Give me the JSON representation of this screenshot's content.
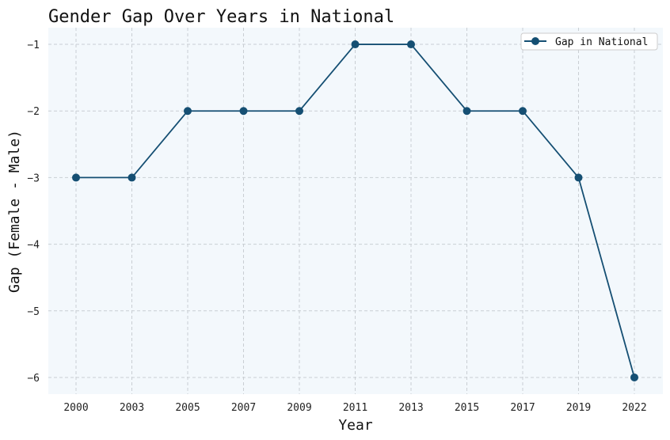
{
  "chart_data": {
    "type": "line",
    "title": "Gender Gap Over Years in National",
    "xlabel": "Year",
    "ylabel": "Gap (Female - Male)",
    "categories": [
      "2000",
      "2003",
      "2005",
      "2007",
      "2009",
      "2011",
      "2013",
      "2015",
      "2017",
      "2019",
      "2022"
    ],
    "series": [
      {
        "name": "Gap in National",
        "values": [
          -3,
          -3,
          -2,
          -2,
          -2,
          -1,
          -1,
          -2,
          -2,
          -3,
          -6
        ]
      }
    ],
    "ylim": [
      -6.25,
      -0.75
    ],
    "yticks": [
      -1,
      -2,
      -3,
      -4,
      -5,
      -6
    ],
    "ytick_labels": [
      "−1",
      "−2",
      "−3",
      "−4",
      "−5",
      "−6"
    ],
    "grid": true,
    "legend_position": "top-right",
    "colors": {
      "line": "#154f73",
      "plot_background": "#f3f8fc",
      "grid": "#c9ced3"
    }
  }
}
